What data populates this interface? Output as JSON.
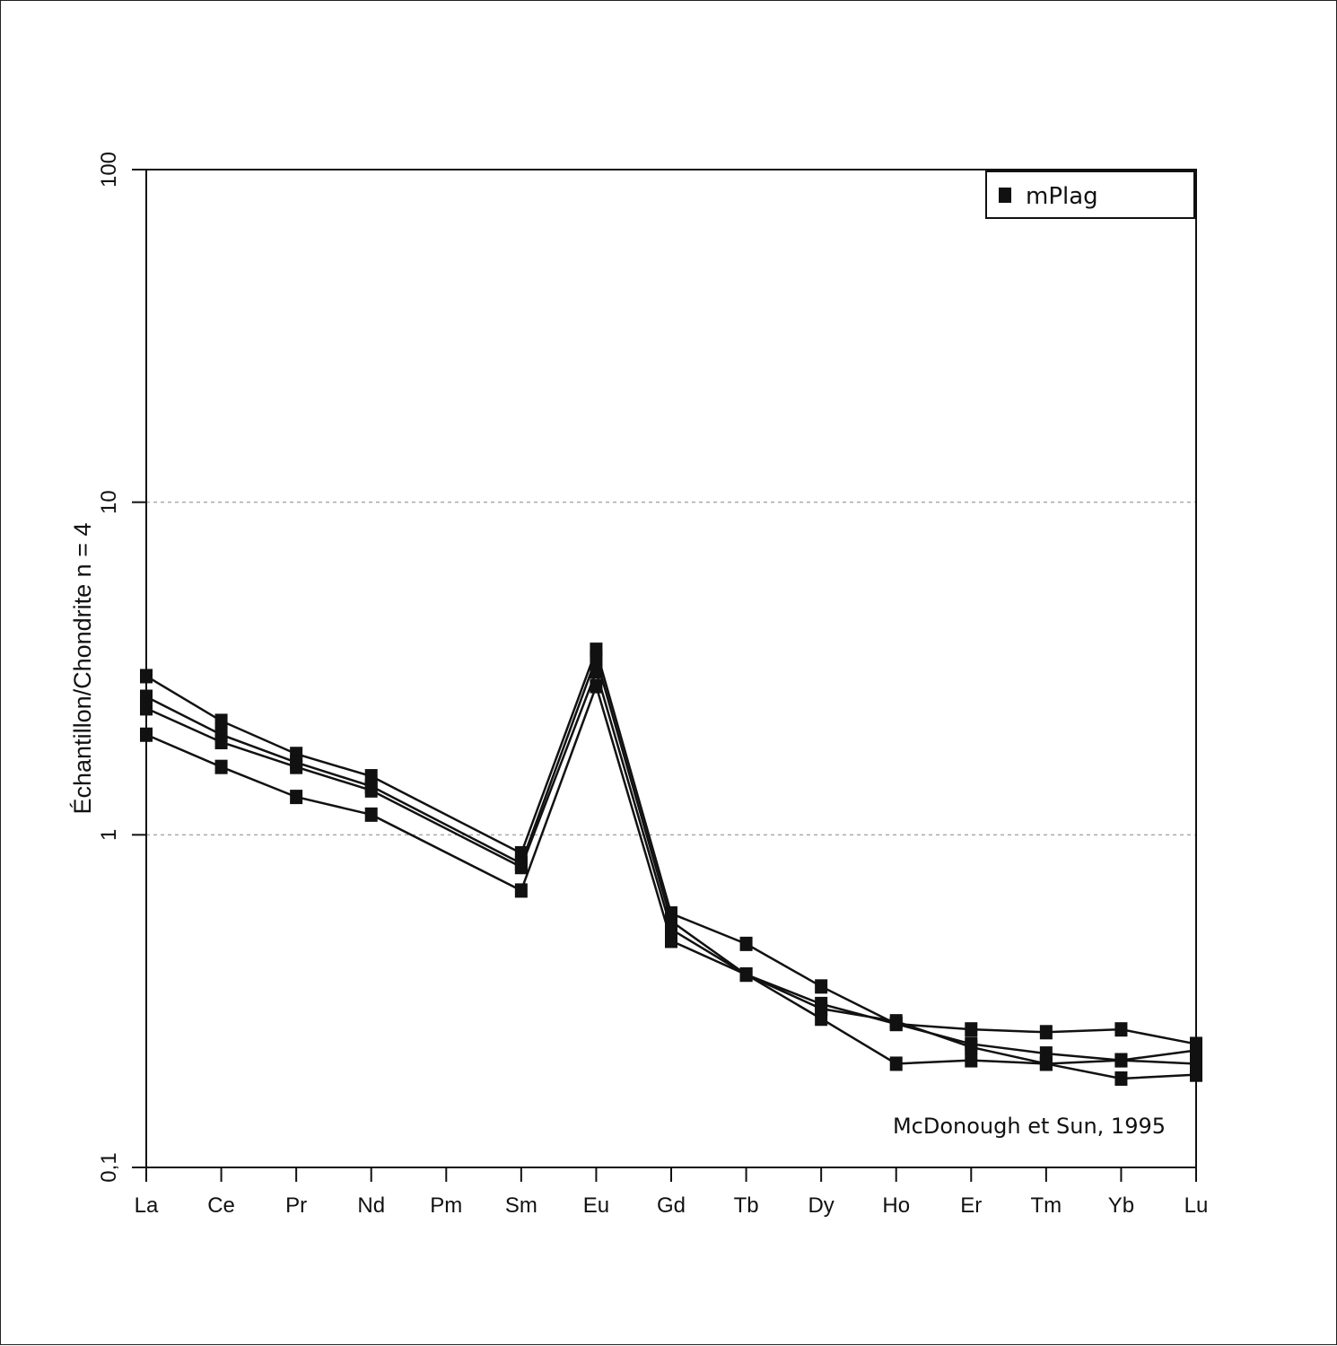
{
  "chart_data": {
    "type": "line",
    "ylabel": "Échantillon/Chondrite n = 4",
    "yscale": "log",
    "ylim": [
      0.1,
      100
    ],
    "ytick_labels": [
      "0,1",
      "1",
      "10",
      "100"
    ],
    "ytick_values": [
      0.1,
      1,
      10,
      100
    ],
    "gridlines_at": [
      1,
      10
    ],
    "categories": [
      "La",
      "Ce",
      "Pr",
      "Nd",
      "Pm",
      "Sm",
      "Eu",
      "Gd",
      "Tb",
      "Dy",
      "Ho",
      "Er",
      "Tm",
      "Yb",
      "Lu"
    ],
    "legend": {
      "label": "mPlag",
      "position": "top-right"
    },
    "annotation": "McDonough et Sun, 1995",
    "colors": {
      "line": "#111111",
      "marker": "#111111",
      "grid": "#aaaaaa"
    },
    "series": [
      {
        "values": [
          3.0,
          2.2,
          1.75,
          1.5,
          null,
          0.88,
          3.6,
          0.58,
          0.47,
          0.35,
          0.27,
          0.26,
          0.255,
          0.26,
          0.235
        ]
      },
      {
        "values": [
          2.6,
          2.0,
          1.65,
          1.4,
          null,
          0.82,
          3.4,
          0.55,
          0.38,
          0.31,
          0.27,
          0.235,
          0.22,
          0.21,
          0.225
        ]
      },
      {
        "values": [
          2.4,
          1.9,
          1.6,
          1.36,
          null,
          0.8,
          3.1,
          0.52,
          0.38,
          0.3,
          0.275,
          0.23,
          0.205,
          0.185,
          0.19
        ]
      },
      {
        "values": [
          2.0,
          1.6,
          1.3,
          1.15,
          null,
          0.68,
          2.8,
          0.48,
          0.38,
          0.28,
          0.205,
          0.21,
          0.205,
          0.21,
          0.205
        ]
      }
    ]
  }
}
